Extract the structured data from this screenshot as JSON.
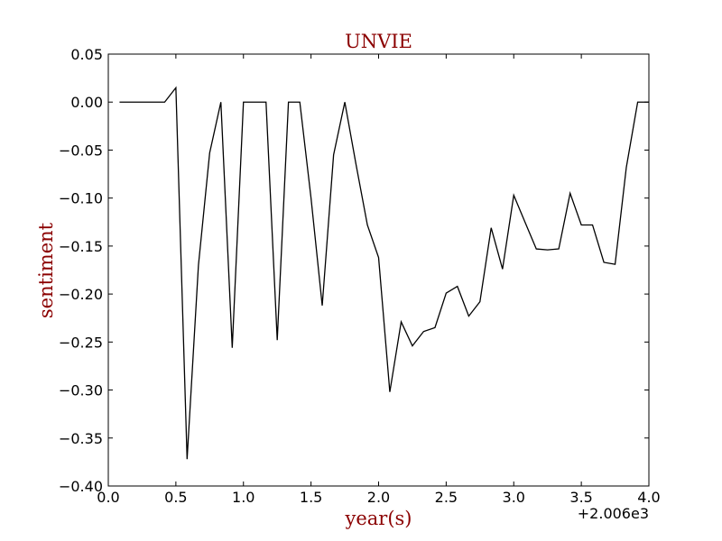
{
  "colors": {
    "title": "#8b0000",
    "axis_label": "#8b0000",
    "line": "#000000",
    "frame": "#000000",
    "background": "#ffffff"
  },
  "chart_data": {
    "type": "line",
    "title": "UNVIE",
    "xlabel": "year(s)",
    "ylabel": "sentiment",
    "x_offset_label": "+2.006e3",
    "xlim": [
      0.0,
      4.0
    ],
    "ylim": [
      -0.4,
      0.05
    ],
    "x_ticks": [
      0.0,
      0.5,
      1.0,
      1.5,
      2.0,
      2.5,
      3.0,
      3.5,
      4.0
    ],
    "x_tick_labels": [
      "0.0",
      "0.5",
      "1.0",
      "1.5",
      "2.0",
      "2.5",
      "3.0",
      "3.5",
      "4.0"
    ],
    "y_ticks": [
      0.05,
      0.0,
      -0.05,
      -0.1,
      -0.15,
      -0.2,
      -0.25,
      -0.3,
      -0.35,
      -0.4
    ],
    "y_tick_labels": [
      "0.05",
      "0.00",
      "−0.05",
      "−0.10",
      "−0.15",
      "−0.20",
      "−0.25",
      "−0.30",
      "−0.35",
      "−0.40"
    ],
    "grid": false,
    "legend": "none",
    "series": [
      {
        "x": [
          0.083,
          0.167,
          0.25,
          0.333,
          0.417,
          0.5,
          0.583,
          0.667,
          0.75,
          0.833,
          0.917,
          1.0,
          1.083,
          1.167,
          1.25,
          1.333,
          1.417,
          1.5,
          1.583,
          1.667,
          1.75,
          1.833,
          1.917,
          2.0,
          2.083,
          2.167,
          2.25,
          2.333,
          2.417,
          2.5,
          2.583,
          2.667,
          2.75,
          2.833,
          2.917,
          3.0,
          3.083,
          3.167,
          3.25,
          3.333,
          3.417,
          3.5,
          3.583,
          3.667,
          3.75,
          3.833,
          3.917,
          4.0
        ],
        "y": [
          0.0,
          0.0,
          0.0,
          0.0,
          0.0,
          0.015,
          -0.372,
          -0.17,
          -0.053,
          0.0,
          -0.256,
          0.0,
          0.0,
          0.0,
          -0.248,
          0.0,
          0.0,
          -0.1,
          -0.212,
          -0.055,
          0.0,
          -0.065,
          -0.128,
          -0.162,
          -0.302,
          -0.229,
          -0.254,
          -0.239,
          -0.235,
          -0.199,
          -0.192,
          -0.223,
          -0.208,
          -0.131,
          -0.174,
          -0.097,
          -0.125,
          -0.153,
          -0.154,
          -0.153,
          -0.095,
          -0.128,
          -0.128,
          -0.167,
          -0.169,
          -0.068,
          0.0,
          0.0
        ]
      }
    ]
  }
}
